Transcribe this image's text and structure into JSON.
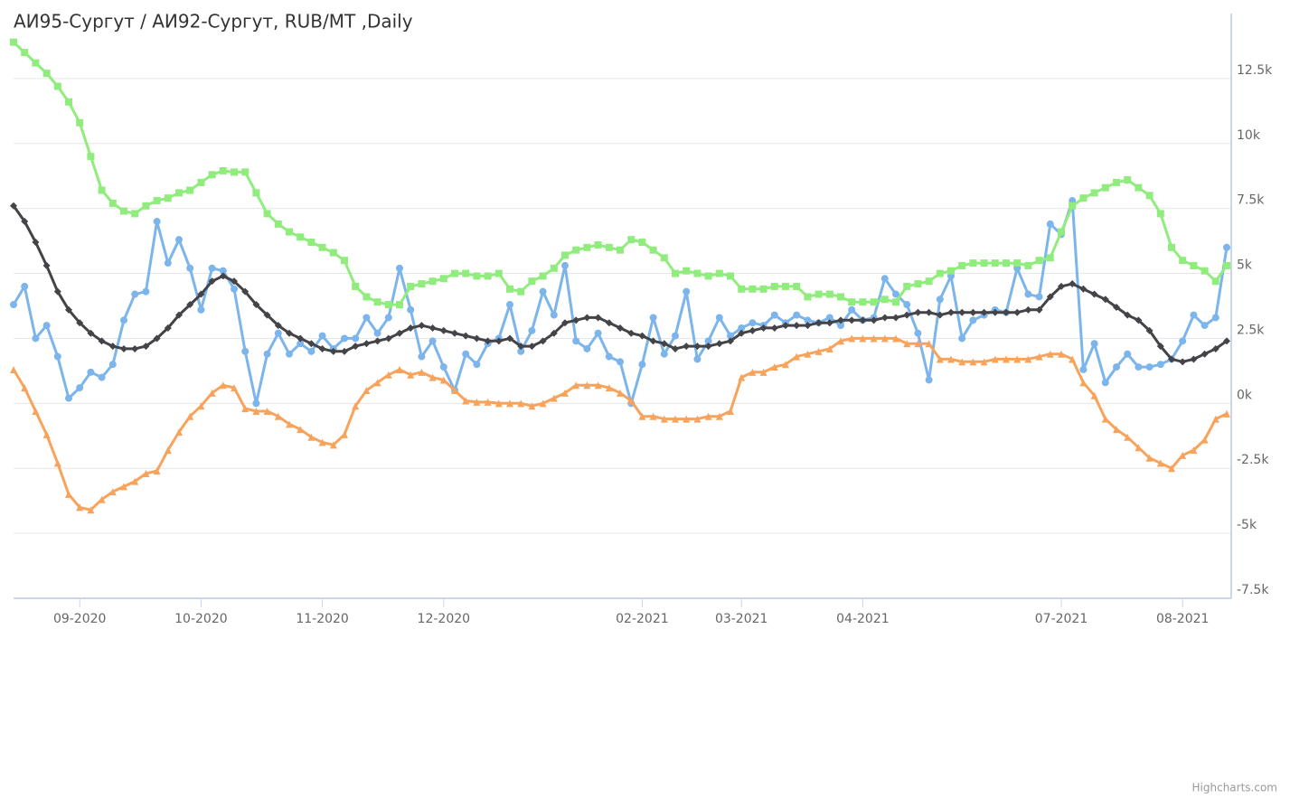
{
  "chart_data": {
    "type": "line",
    "title": "АИ95-Сургут / АИ92-Сургут, RUB/MT ,Daily",
    "credits": "Highcharts.com",
    "categories": [
      null,
      null,
      null,
      null,
      null,
      null,
      "09-2020",
      null,
      null,
      null,
      null,
      null,
      null,
      null,
      null,
      null,
      null,
      "10-2020",
      null,
      null,
      null,
      null,
      null,
      null,
      null,
      null,
      null,
      null,
      "11-2020",
      null,
      null,
      null,
      null,
      null,
      null,
      null,
      null,
      null,
      null,
      "12-2020",
      null,
      null,
      null,
      null,
      null,
      null,
      null,
      null,
      null,
      null,
      null,
      null,
      null,
      null,
      null,
      null,
      null,
      "02-2021",
      null,
      null,
      null,
      null,
      null,
      null,
      null,
      null,
      "03-2021",
      null,
      null,
      null,
      null,
      null,
      null,
      null,
      null,
      null,
      null,
      "04-2021",
      null,
      null,
      null,
      null,
      null,
      null,
      null,
      null,
      null,
      null,
      null,
      null,
      null,
      null,
      null,
      null,
      null,
      "07-2021",
      null,
      null,
      null,
      null,
      null,
      null,
      null,
      null,
      null,
      null,
      "08-2021",
      null,
      null,
      null,
      null
    ],
    "series": [
      {
        "color": "#7cb5ec",
        "marker": "circle",
        "values": [
          3800,
          4500,
          2500,
          3000,
          1800,
          200,
          600,
          1200,
          1000,
          1500,
          3200,
          4200,
          4300,
          7000,
          5400,
          6300,
          5200,
          3600,
          5200,
          5100,
          4400,
          2000,
          0,
          1900,
          2700,
          1900,
          2300,
          2000,
          2600,
          2100,
          2500,
          2500,
          3300,
          2700,
          3300,
          5200,
          3600,
          1800,
          2400,
          1400,
          500,
          1900,
          1500,
          2300,
          2500,
          3800,
          2000,
          2800,
          4300,
          3400,
          5300,
          2400,
          2100,
          2700,
          1800,
          1600,
          0,
          1500,
          3300,
          1900,
          2600,
          4300,
          1700,
          2400,
          3300,
          2600,
          2900,
          3100,
          3000,
          3400,
          3100,
          3400,
          3200,
          3100,
          3300,
          3000,
          3600,
          3200,
          3300,
          4800,
          4200,
          3800,
          2700,
          900,
          4000,
          4900,
          2500,
          3200,
          3400,
          3600,
          3500,
          5200,
          4200,
          4100,
          6900,
          6500,
          7800,
          1300,
          2300,
          800,
          1400,
          1900,
          1400,
          1400,
          1500,
          1700,
          2400,
          3400,
          3000,
          3300,
          6000
        ]
      },
      {
        "color": "#434348",
        "marker": "diamond",
        "values": [
          7600,
          7000,
          6200,
          5300,
          4300,
          3600,
          3100,
          2700,
          2400,
          2200,
          2100,
          2100,
          2200,
          2500,
          2900,
          3400,
          3800,
          4200,
          4700,
          4900,
          4700,
          4300,
          3800,
          3400,
          3000,
          2700,
          2500,
          2300,
          2100,
          2000,
          2000,
          2200,
          2300,
          2400,
          2500,
          2700,
          2900,
          3000,
          2900,
          2800,
          2700,
          2600,
          2500,
          2400,
          2400,
          2500,
          2200,
          2200,
          2400,
          2700,
          3100,
          3200,
          3300,
          3300,
          3100,
          2900,
          2700,
          2600,
          2400,
          2300,
          2100,
          2200,
          2200,
          2200,
          2300,
          2400,
          2700,
          2800,
          2900,
          2900,
          3000,
          3000,
          3000,
          3100,
          3100,
          3200,
          3200,
          3200,
          3200,
          3300,
          3300,
          3400,
          3500,
          3500,
          3400,
          3500,
          3500,
          3500,
          3500,
          3500,
          3500,
          3500,
          3600,
          3600,
          4100,
          4500,
          4600,
          4400,
          4200,
          4000,
          3700,
          3400,
          3200,
          2800,
          2200,
          1700,
          1600,
          1700,
          1900,
          2100,
          2400
        ]
      },
      {
        "color": "#90ed7d",
        "marker": "square",
        "values": [
          13900,
          13500,
          13100,
          12700,
          12200,
          11600,
          10800,
          9500,
          8200,
          7700,
          7400,
          7300,
          7600,
          7800,
          7900,
          8100,
          8200,
          8500,
          8800,
          8950,
          8900,
          8900,
          8100,
          7300,
          6900,
          6600,
          6400,
          6200,
          6000,
          5800,
          5500,
          4500,
          4100,
          3900,
          3800,
          3800,
          4500,
          4600,
          4700,
          4800,
          5000,
          5000,
          4900,
          4900,
          5000,
          4400,
          4300,
          4700,
          4900,
          5200,
          5700,
          5900,
          6000,
          6100,
          6000,
          5900,
          6300,
          6200,
          5900,
          5600,
          5000,
          5100,
          5000,
          4900,
          5000,
          4900,
          4400,
          4400,
          4400,
          4500,
          4500,
          4500,
          4100,
          4200,
          4200,
          4100,
          3900,
          3900,
          3900,
          4000,
          3900,
          4500,
          4600,
          4700,
          5000,
          5100,
          5300,
          5400,
          5400,
          5400,
          5400,
          5400,
          5300,
          5500,
          5600,
          6600,
          7600,
          7900,
          8100,
          8300,
          8500,
          8600,
          8300,
          8000,
          7300,
          6000,
          5500,
          5300,
          5100,
          4700,
          5300
        ]
      },
      {
        "color": "#f7a35c",
        "marker": "triangle",
        "values": [
          1300,
          600,
          -300,
          -1200,
          -2300,
          -3500,
          -4000,
          -4100,
          -3700,
          -3400,
          -3200,
          -3000,
          -2700,
          -2600,
          -1800,
          -1100,
          -500,
          -100,
          400,
          700,
          600,
          -200,
          -300,
          -300,
          -500,
          -800,
          -1000,
          -1300,
          -1500,
          -1600,
          -1200,
          -100,
          500,
          800,
          1100,
          1300,
          1100,
          1200,
          1000,
          900,
          500,
          100,
          50,
          50,
          0,
          0,
          0,
          -100,
          0,
          200,
          400,
          700,
          700,
          700,
          600,
          400,
          100,
          -500,
          -500,
          -600,
          -600,
          -600,
          -600,
          -500,
          -500,
          -300,
          1000,
          1200,
          1200,
          1400,
          1500,
          1800,
          1900,
          2000,
          2100,
          2400,
          2500,
          2500,
          2500,
          2500,
          2500,
          2300,
          2300,
          2300,
          1700,
          1700,
          1600,
          1600,
          1600,
          1700,
          1700,
          1700,
          1700,
          1800,
          1900,
          1900,
          1700,
          800,
          300,
          -600,
          -1000,
          -1300,
          -1700,
          -2100,
          -2300,
          -2500,
          -2000,
          -1800,
          -1400,
          -600,
          -400
        ]
      }
    ],
    "ylim": [
      -7500,
      15000
    ],
    "yticks": [
      {
        "value": -7500,
        "label": "-7.5k"
      },
      {
        "value": -5000,
        "label": "-5k"
      },
      {
        "value": -2500,
        "label": "-2.5k"
      },
      {
        "value": 0,
        "label": "0k"
      },
      {
        "value": 2500,
        "label": "2.5k"
      },
      {
        "value": 5000,
        "label": "5k"
      },
      {
        "value": 7500,
        "label": "7.5k"
      },
      {
        "value": 10000,
        "label": "10k"
      },
      {
        "value": 12500,
        "label": "12.5k"
      }
    ],
    "grid": true
  }
}
